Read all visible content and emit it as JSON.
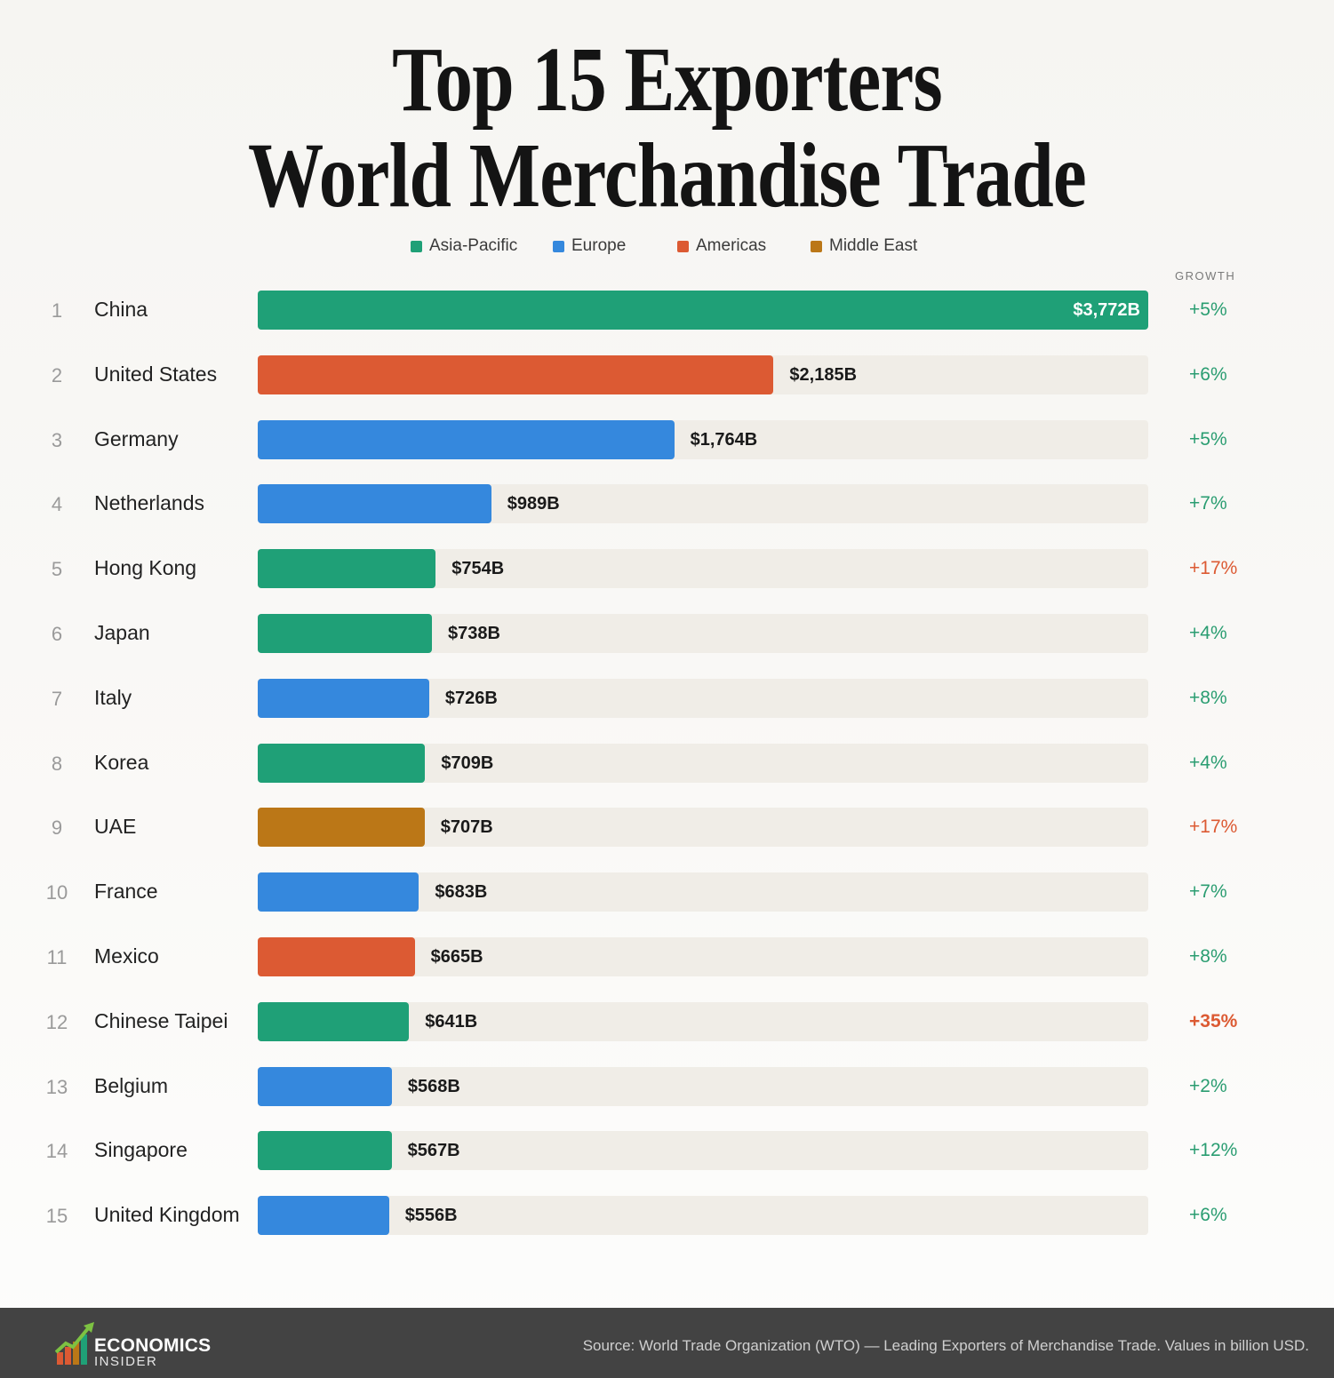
{
  "title_line1": "Top 15 Exporters",
  "title_line2": "World Merchandise Trade",
  "legend": [
    {
      "label": "Asia-Pacific",
      "color": "#1fa077"
    },
    {
      "label": "Europe",
      "color": "#3588dd"
    },
    {
      "label": "Americas",
      "color": "#dc5a33"
    },
    {
      "label": "Middle East",
      "color": "#bb7717"
    }
  ],
  "growth_header": "GROWTH",
  "chart_data": {
    "type": "bar",
    "orientation": "horizontal",
    "title": "Top 15 Exporters World Merchandise Trade",
    "unit": "billion USD",
    "xlim": [
      0,
      3772
    ],
    "rows": [
      {
        "rank": "1",
        "country": "China",
        "region": "Asia-Pacific",
        "value": 3772,
        "label": "$3,772B",
        "growth": "+5%"
      },
      {
        "rank": "2",
        "country": "United States",
        "region": "Americas",
        "value": 2185,
        "label": "$2,185B",
        "growth": "+6%"
      },
      {
        "rank": "3",
        "country": "Germany",
        "region": "Europe",
        "value": 1764,
        "label": "$1,764B",
        "growth": "+5%"
      },
      {
        "rank": "4",
        "country": "Netherlands",
        "region": "Europe",
        "value": 989,
        "label": "$989B",
        "growth": "+7%"
      },
      {
        "rank": "5",
        "country": "Hong Kong",
        "region": "Asia-Pacific",
        "value": 754,
        "label": "$754B",
        "growth": "+17%"
      },
      {
        "rank": "6",
        "country": "Japan",
        "region": "Asia-Pacific",
        "value": 738,
        "label": "$738B",
        "growth": "+4%"
      },
      {
        "rank": "7",
        "country": "Italy",
        "region": "Europe",
        "value": 726,
        "label": "$726B",
        "growth": "+8%"
      },
      {
        "rank": "8",
        "country": "Korea",
        "region": "Asia-Pacific",
        "value": 709,
        "label": "$709B",
        "growth": "+4%"
      },
      {
        "rank": "9",
        "country": "UAE",
        "region": "Middle East",
        "value": 707,
        "label": "$707B",
        "growth": "+17%"
      },
      {
        "rank": "10",
        "country": "France",
        "region": "Europe",
        "value": 683,
        "label": "$683B",
        "growth": "+7%"
      },
      {
        "rank": "11",
        "country": "Mexico",
        "region": "Americas",
        "value": 665,
        "label": "$665B",
        "growth": "+8%"
      },
      {
        "rank": "12",
        "country": "Chinese Taipei",
        "region": "Asia-Pacific",
        "value": 641,
        "label": "$641B",
        "growth": "+35%"
      },
      {
        "rank": "13",
        "country": "Belgium",
        "region": "Europe",
        "value": 568,
        "label": "$568B",
        "growth": "+2%"
      },
      {
        "rank": "14",
        "country": "Singapore",
        "region": "Asia-Pacific",
        "value": 567,
        "label": "$567B",
        "growth": "+12%"
      },
      {
        "rank": "15",
        "country": "United Kingdom",
        "region": "Europe",
        "value": 556,
        "label": "$556B",
        "growth": "+6%"
      }
    ]
  },
  "growth_colors": {
    "normal": "#2a9d71",
    "high": "#dc5a33"
  },
  "footer": {
    "brand_line1": "ECONOMICS",
    "brand_line2": "INSIDER",
    "source": "Source: World Trade Organization (WTO) — Leading Exporters of Merchandise Trade. Values in billion USD."
  }
}
